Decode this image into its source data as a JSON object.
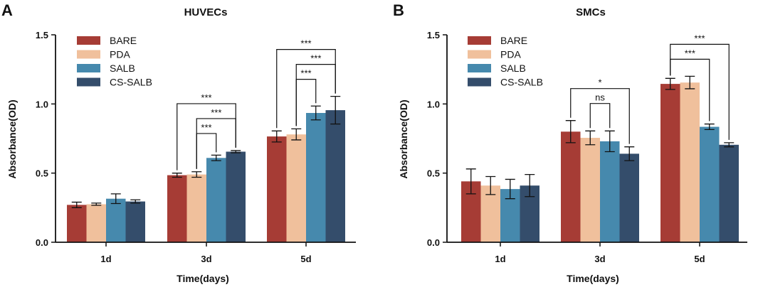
{
  "colors": {
    "BARE": "#a63c35",
    "PDA": "#f0c09c",
    "SALB": "#4689ad",
    "CS-SALB": "#344d6b"
  },
  "chart_data": [
    {
      "panel": "A",
      "type": "bar",
      "title": "HUVECs",
      "xlabel": "Time(days)",
      "ylabel": "Absorbance(OD)",
      "ylim": [
        0,
        1.5
      ],
      "yticks": [
        "0.0",
        "0.5",
        "1.0",
        "1.5"
      ],
      "categories": [
        "1d",
        "3d",
        "5d"
      ],
      "series": [
        {
          "name": "BARE",
          "values": [
            0.27,
            0.485,
            0.765
          ],
          "errors": [
            0.02,
            0.015,
            0.04
          ]
        },
        {
          "name": "PDA",
          "values": [
            0.275,
            0.49,
            0.78
          ],
          "errors": [
            0.008,
            0.02,
            0.04
          ]
        },
        {
          "name": "SALB",
          "values": [
            0.315,
            0.61,
            0.935
          ],
          "errors": [
            0.035,
            0.02,
            0.05
          ]
        },
        {
          "name": "CS-SALB",
          "values": [
            0.295,
            0.655,
            0.955
          ],
          "errors": [
            0.012,
            0.008,
            0.1
          ]
        }
      ],
      "legend": [
        "BARE",
        "PDA",
        "SALB",
        "CS-SALB"
      ],
      "significance": [
        {
          "cat": 1,
          "from": 0,
          "to": 3,
          "label": "***",
          "level": 0
        },
        {
          "cat": 1,
          "from": 1,
          "to": 3,
          "label": "***",
          "level": 1
        },
        {
          "cat": 1,
          "from": 1,
          "to": 2,
          "label": "***",
          "level": 2
        },
        {
          "cat": 2,
          "from": 0,
          "to": 3,
          "label": "***",
          "level": 0
        },
        {
          "cat": 2,
          "from": 1,
          "to": 3,
          "label": "***",
          "level": 1
        },
        {
          "cat": 2,
          "from": 1,
          "to": 2,
          "label": "***",
          "level": 2
        }
      ]
    },
    {
      "panel": "B",
      "type": "bar",
      "title": "SMCs",
      "xlabel": "Time(days)",
      "ylabel": "Absorbance(OD)",
      "ylim": [
        0,
        1.5
      ],
      "yticks": [
        "0.0",
        "0.5",
        "1.0",
        "1.5"
      ],
      "categories": [
        "1d",
        "3d",
        "5d"
      ],
      "series": [
        {
          "name": "BARE",
          "values": [
            0.44,
            0.8,
            1.145
          ],
          "errors": [
            0.09,
            0.08,
            0.04
          ]
        },
        {
          "name": "PDA",
          "values": [
            0.41,
            0.755,
            1.155
          ],
          "errors": [
            0.065,
            0.05,
            0.045
          ]
        },
        {
          "name": "SALB",
          "values": [
            0.385,
            0.73,
            0.835
          ],
          "errors": [
            0.07,
            0.075,
            0.02
          ]
        },
        {
          "name": "CS-SALB",
          "values": [
            0.41,
            0.64,
            0.705
          ],
          "errors": [
            0.08,
            0.05,
            0.015
          ]
        }
      ],
      "legend": [
        "BARE",
        "PDA",
        "SALB",
        "CS-SALB"
      ],
      "significance": [
        {
          "cat": 1,
          "from": 0,
          "to": 3,
          "label": "*",
          "level": 0
        },
        {
          "cat": 1,
          "from": 1,
          "to": 2,
          "label": "ns",
          "level": 1
        },
        {
          "cat": 2,
          "from": 0,
          "to": 3,
          "label": "***",
          "level": 0
        },
        {
          "cat": 2,
          "from": 0,
          "to": 2,
          "label": "***",
          "level": 1
        }
      ]
    }
  ]
}
